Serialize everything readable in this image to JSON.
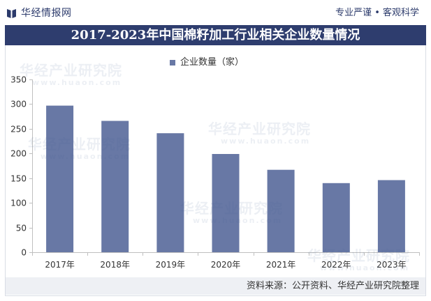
{
  "header": {
    "logo_icon": "book-icon",
    "brand": "华经情报网",
    "slogan": "专业严谨 • 客观科学"
  },
  "colors": {
    "title_bar": "#2e3d6e",
    "bar": "#6878a5",
    "brand_text": "#2b3a6b",
    "footer_bg": "#eef0f4",
    "axis": "#bfbfbf"
  },
  "chart_data": {
    "type": "bar",
    "title": "2017-2023年中国棉籽加工行业相关企业数量情况",
    "categories": [
      "2017年",
      "2018年",
      "2019年",
      "2020年",
      "2021年",
      "2022年",
      "2023年"
    ],
    "series": [
      {
        "name": "企业数量（家）",
        "values": [
          297,
          266,
          241,
          199,
          167,
          140,
          146
        ]
      }
    ],
    "ylim": [
      0,
      350
    ],
    "yticks": [
      0,
      50,
      100,
      150,
      200,
      250,
      300,
      350
    ],
    "xlabel": "",
    "ylabel": "",
    "grid": false,
    "legend": "top"
  },
  "footer": {
    "source": "资料来源：公开资料、华经产业研究院整理"
  },
  "watermark": {
    "text": "华经产业研究院",
    "url": "www.huaon.com"
  }
}
